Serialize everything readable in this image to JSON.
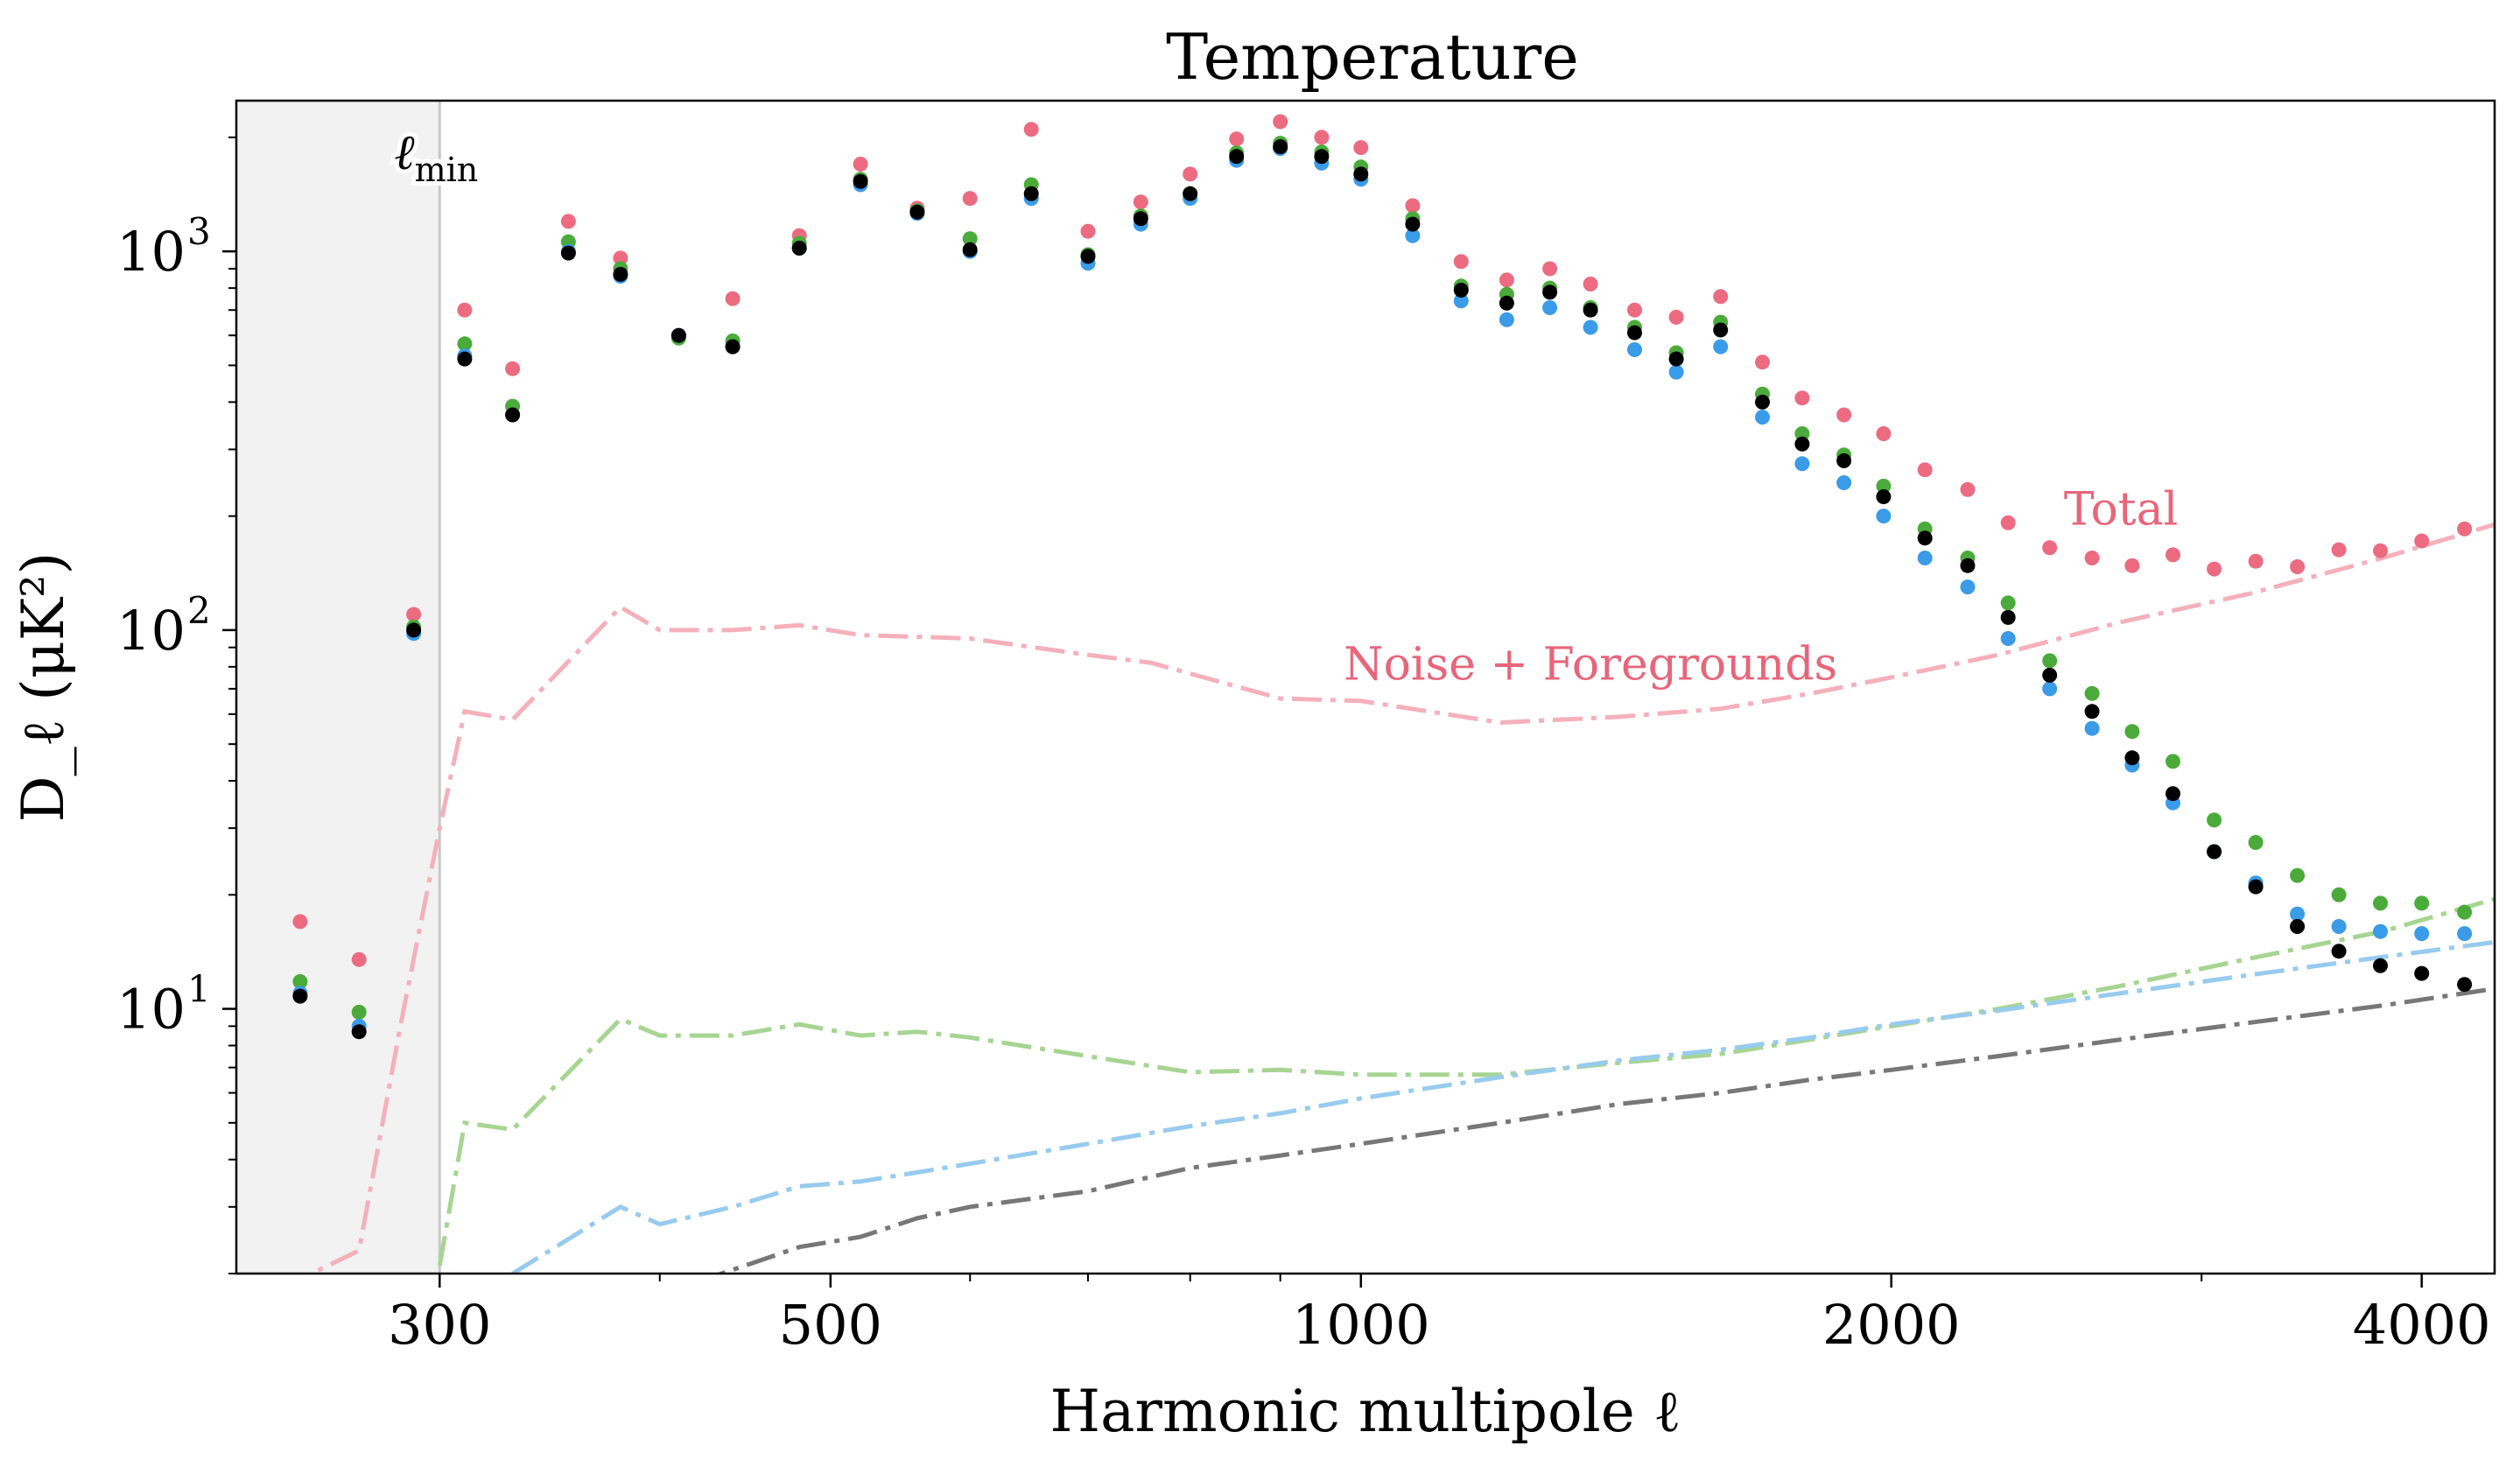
{
  "chart_data": {
    "type": "scatter",
    "title": "Temperature",
    "xlabel": "Harmonic multipole ℓ",
    "ylabel": "D_ℓ (μK²)",
    "x_scale": "log",
    "y_scale": "log",
    "xlim": [
      230,
      4400
    ],
    "ylim": [
      2.0,
      2500
    ],
    "x_ticks": [
      300,
      500,
      1000,
      2000,
      4000
    ],
    "x_tick_labels": [
      "300",
      "500",
      "1000",
      "2000",
      "4000"
    ],
    "y_ticks": [
      10,
      100,
      1000
    ],
    "y_tick_labels": [
      "10",
      "10",
      "10"
    ],
    "y_tick_exponents": [
      "1",
      "2",
      "3"
    ],
    "lmin": 300,
    "lmin_label": "ℓ",
    "lmin_sub": "min",
    "annotations": [
      {
        "text": "Total",
        "x": 2700,
        "y": 190,
        "color": "#e8657a"
      },
      {
        "text": "Noise + Foregrounds",
        "x": 1350,
        "y": 74,
        "color": "#e8657a"
      }
    ],
    "colors": {
      "pink": "#ec6b80",
      "green": "#4aab3a",
      "blue": "#3a9be8",
      "black": "#000000",
      "pink_line": "#f5b0bb",
      "green_line": "#a6d592",
      "blue_line": "#97cbef",
      "gray_line": "#777777",
      "shade": "#f2f2f2"
    },
    "points_x": [
      250,
      270,
      290,
      310,
      330,
      355,
      380,
      410,
      440,
      480,
      520,
      560,
      600,
      650,
      700,
      750,
      800,
      850,
      900,
      950,
      1000,
      1070,
      1140,
      1210,
      1280,
      1350,
      1430,
      1510,
      1600,
      1690,
      1780,
      1880,
      1980,
      2090,
      2210,
      2330,
      2460,
      2600,
      2740,
      2890,
      3050,
      3220,
      3400,
      3590,
      3790,
      4000,
      4230
    ],
    "points": {
      "total": [
        17,
        13.5,
        110,
        700,
        490,
        1200,
        960,
        600,
        750,
        1100,
        1700,
        1300,
        1380,
        2100,
        1130,
        1350,
        1600,
        1980,
        2200,
        2000,
        1880,
        1320,
        940,
        840,
        900,
        820,
        700,
        670,
        760,
        510,
        410,
        370,
        330,
        265,
        235,
        192,
        165,
        155,
        148,
        158,
        145,
        152,
        147,
        163,
        162,
        172,
        185
      ],
      "green": [
        11.8,
        9.8,
        102,
        570,
        390,
        1060,
        900,
        590,
        580,
        1050,
        1550,
        1280,
        1080,
        1500,
        980,
        1240,
        1420,
        1820,
        1930,
        1830,
        1670,
        1220,
        810,
        770,
        800,
        710,
        630,
        540,
        650,
        420,
        330,
        290,
        240,
        185,
        155,
        118,
        83,
        68,
        54,
        45,
        31.5,
        27.5,
        22.5,
        20,
        19,
        19,
        18
      ],
      "blue": [
        11,
        9,
        98,
        530,
        370,
        1000,
        860,
        600,
        560,
        1020,
        1500,
        1260,
        1000,
        1380,
        930,
        1180,
        1380,
        1740,
        1870,
        1710,
        1550,
        1100,
        740,
        660,
        710,
        630,
        550,
        480,
        560,
        365,
        275,
        245,
        200,
        155,
        130,
        95,
        70,
        55,
        44,
        35,
        26,
        21.5,
        17.8,
        16.5,
        16,
        15.8,
        15.8
      ],
      "black": [
        10.8,
        8.7,
        100,
        520,
        370,
        990,
        870,
        600,
        560,
        1020,
        1530,
        1270,
        1010,
        1420,
        970,
        1220,
        1420,
        1780,
        1890,
        1780,
        1600,
        1180,
        790,
        730,
        780,
        700,
        610,
        520,
        620,
        400,
        310,
        280,
        225,
        175,
        148,
        108,
        76,
        61,
        46,
        37,
        26,
        21,
        16.5,
        14.2,
        13,
        12.4,
        11.6
      ]
    },
    "series": [
      {
        "type": "line",
        "color_key": "pink_line",
        "x": [
          230,
          270,
          285,
          300,
          310,
          330,
          380,
          400,
          440,
          480,
          520,
          560,
          600,
          700,
          760,
          900,
          1000,
          1200,
          1400,
          1600,
          1800,
          2000,
          2300,
          2700,
          3200,
          3800,
          4400
        ],
        "y": [
          1.6,
          2.3,
          9,
          30,
          61,
          58,
          115,
          100,
          100,
          103,
          97,
          96,
          95,
          86,
          82,
          66,
          65,
          57,
          59,
          62,
          68,
          75,
          86,
          105,
          125,
          155,
          190
        ]
      },
      {
        "type": "line",
        "color_key": "green_line",
        "x": [
          300,
          310,
          330,
          380,
          400,
          440,
          480,
          520,
          560,
          600,
          700,
          800,
          900,
          1000,
          1200,
          1400,
          1600,
          1800,
          2000,
          2300,
          2700,
          3200,
          3800,
          4400
        ],
        "y": [
          2.1,
          5.0,
          4.8,
          9.4,
          8.5,
          8.5,
          9.1,
          8.5,
          8.7,
          8.4,
          7.5,
          6.8,
          6.9,
          6.7,
          6.7,
          7.2,
          7.6,
          8.3,
          9.0,
          10.0,
          11.5,
          13.6,
          16.0,
          19.5
        ]
      },
      {
        "type": "line",
        "color_key": "blue_line",
        "x": [
          330,
          380,
          400,
          440,
          480,
          520,
          560,
          600,
          700,
          800,
          900,
          1000,
          1200,
          1400,
          1600,
          1800,
          2000,
          2300,
          2700,
          3200,
          3800,
          4400
        ],
        "y": [
          2.0,
          3.0,
          2.7,
          3.0,
          3.4,
          3.5,
          3.7,
          3.9,
          4.4,
          4.9,
          5.3,
          5.8,
          6.6,
          7.3,
          7.8,
          8.4,
          9.1,
          9.9,
          11.0,
          12.3,
          13.7,
          15.0
        ]
      },
      {
        "type": "line",
        "color_key": "gray_line",
        "x": [
          420,
          480,
          520,
          560,
          600,
          700,
          800,
          900,
          1000,
          1200,
          1400,
          1600,
          1800,
          2000,
          2300,
          2700,
          3200,
          3800,
          4400
        ],
        "y": [
          1.9,
          2.35,
          2.5,
          2.8,
          3.0,
          3.3,
          3.8,
          4.1,
          4.4,
          5.0,
          5.6,
          6.0,
          6.5,
          6.9,
          7.5,
          8.3,
          9.2,
          10.2,
          11.3
        ]
      }
    ]
  }
}
